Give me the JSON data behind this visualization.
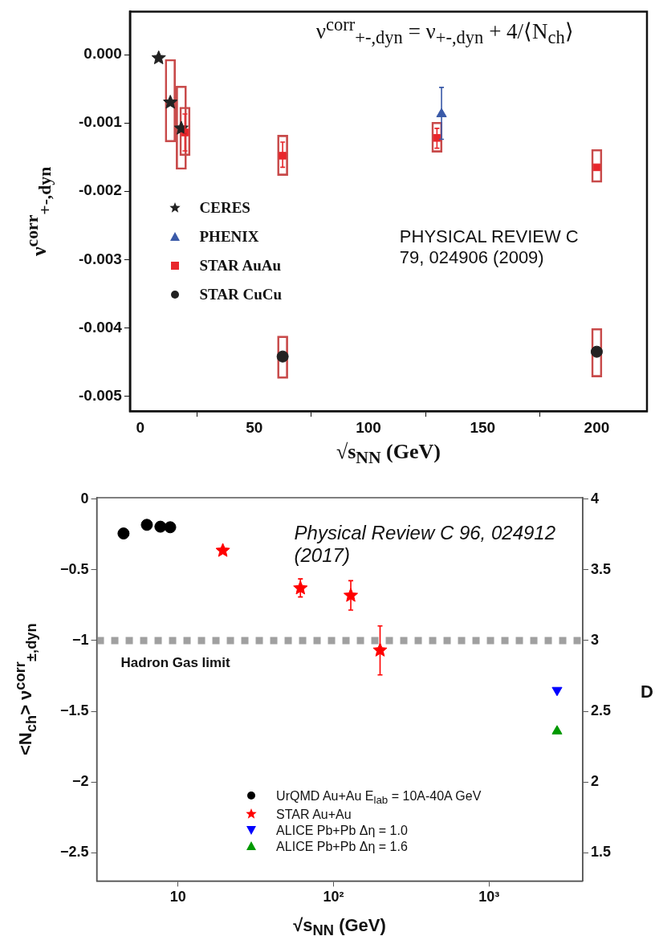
{
  "chart_data": [
    {
      "type": "scatter",
      "xlabel": "√s$_{NN}$ (GeV)",
      "ylabel": "ν$^{corr}$$_{+-,dyn}$",
      "annotations": [
        "ν$^{corr}$$_{+-,dyn}$ = ν$_{+-,dyn}$ + 4/⟨N$_{ch}$⟩",
        "PHYSICAL REVIEW C 79, 024906 (2009)"
      ],
      "xlim": [
        -4.5,
        222
      ],
      "xticks": [
        0,
        50,
        100,
        150,
        200
      ],
      "ylim": [
        -0.00522,
        0.00063
      ],
      "yticks": [
        {
          "value": 0,
          "label": "0.000"
        },
        {
          "value": -0.001,
          "label": "-0.001"
        },
        {
          "value": -0.002,
          "label": "-0.002"
        },
        {
          "value": -0.003,
          "label": "-0.003"
        },
        {
          "value": -0.004,
          "label": "-0.004"
        },
        {
          "value": -0.005,
          "label": "-0.005"
        }
      ],
      "legend": "left",
      "series": [
        {
          "type": "bar",
          "color": "#c84a4a",
          "x": [
            13.2,
            18,
            19.6,
            62.4,
            130,
            200
          ],
          "base": [
            -0.00128,
            -0.00168,
            -0.00148,
            -0.00177,
            -0.00143,
            -0.00187
          ],
          "values": [
            0.00121,
            0.00122,
            0.00071,
            0.00059,
            0.00044,
            0.00048
          ]
        },
        {
          "type": "bar",
          "color": "#c84a4a",
          "x": [
            62.4,
            200
          ],
          "base": [
            -0.00474,
            -0.00472
          ],
          "values": [
            0.00062,
            0.00071
          ]
        },
        {
          "name": "CERES",
          "color": "#222222",
          "marker": "star",
          "x": [
            8.1,
            13.2,
            18
          ],
          "values": [
            -5e-05,
            -0.0007,
            -0.00108
          ]
        },
        {
          "name": "PHENIX",
          "color": "#3a5aa8",
          "marker": "triangle",
          "x": [
            132
          ],
          "values": [
            -0.00087
          ],
          "errors": [
            [
              -0.00124,
              -0.00048
            ]
          ]
        },
        {
          "name": "STAR AuAu",
          "color": "#e8262b",
          "marker": "square",
          "x": [
            19.6,
            62.4,
            130,
            200
          ],
          "values": [
            -0.00114,
            -0.00148,
            -0.00122,
            -0.00165
          ],
          "errors": [
            [
              -0.00141,
              -0.00087
            ],
            [
              -0.00165,
              -0.00128
            ],
            [
              -0.00137,
              -0.00108
            ],
            null
          ]
        },
        {
          "name": "STAR CuCu",
          "color": "#222222",
          "marker": "circle",
          "x": [
            62.4,
            200
          ],
          "values": [
            -0.00442,
            -0.00435
          ]
        }
      ]
    },
    {
      "type": "scatter",
      "xlabel": "√s$_{NN}$ (GeV)",
      "ylabel": "<N$_{ch}$> ν$^{corr}$$_{±,dyn}$",
      "y2label": "D",
      "annotations": [
        "Physical Review C 96, 024912 (2017)"
      ],
      "log": "x",
      "xlim": [
        3,
        4000
      ],
      "xticks": [
        {
          "value": 10,
          "label": "10"
        },
        {
          "value": 100,
          "label": "10²"
        },
        {
          "value": 1000,
          "label": "10³"
        }
      ],
      "ylim": [
        -2.7,
        0.01
      ],
      "yticks": [
        {
          "value": 0,
          "label": "0"
        },
        {
          "value": -0.5,
          "label": "−0.5"
        },
        {
          "value": -1,
          "label": "−1"
        },
        {
          "value": -1.5,
          "label": "−1.5"
        },
        {
          "value": -2,
          "label": "−2"
        },
        {
          "value": -2.5,
          "label": "−2.5"
        }
      ],
      "y2lim": [
        1.3,
        4.01
      ],
      "y2ticks": [
        1.5,
        2,
        2.5,
        3,
        3.5,
        4
      ],
      "legend": "bottom",
      "ref_lines": [
        {
          "axis": "y",
          "value": -1,
          "label": "Hadron Gas limit",
          "color": "#a0a0a0",
          "line_style": "dashed"
        }
      ],
      "series": [
        {
          "name": "UrQMD Au+Au E$_{lab}$ = 10A-40A GeV",
          "color": "#000000",
          "marker": "circle",
          "x": [
            4.46,
            6.3,
            7.7,
            8.9
          ],
          "values": [
            -0.243,
            -0.182,
            -0.195,
            -0.199
          ]
        },
        {
          "name": "STAR Au+Au",
          "color": "#ff0000",
          "marker": "star",
          "x": [
            19.4,
            61.2,
            129,
            199
          ],
          "values": [
            -0.364,
            -0.63,
            -0.682,
            -1.069
          ],
          "errors": [
            null,
            [
              -0.692,
              -0.564
            ],
            [
              -0.785,
              -0.577
            ],
            [
              -1.243,
              -0.897
            ]
          ]
        },
        {
          "name": "ALICE Pb+Pb Δη = 1.0",
          "color": "#0000ff",
          "marker": "triangle-down",
          "x": [
            2735
          ],
          "values": [
            -1.351
          ]
        },
        {
          "name": "ALICE Pb+Pb Δη = 1.6",
          "color": "#009900",
          "marker": "triangle",
          "x": [
            2735
          ],
          "values": [
            -1.641
          ]
        }
      ]
    }
  ]
}
